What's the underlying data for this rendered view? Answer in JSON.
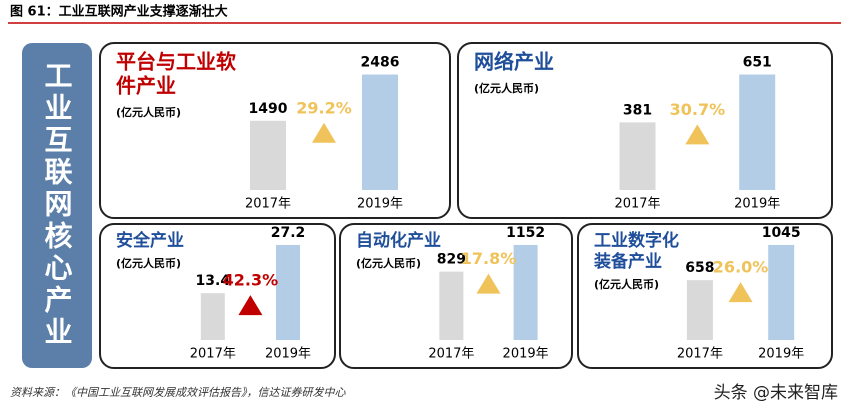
{
  "figure_title": "图 61：工业互联网产业支撑逐渐壮大",
  "side_label": "工业互联网核心产业",
  "source": "资料来源：《中国工业互联网发展成效评估报告》，信达证券研发中心",
  "watermark": "头条 @未来智库",
  "chart_data": [
    {
      "type": "bar",
      "title": [
        "平台与工业软",
        "件产业"
      ],
      "title_color": "#c00000",
      "unit": "(亿元人民币)",
      "categories": [
        "2017年",
        "2019年"
      ],
      "values": [
        1490,
        2486
      ],
      "colors": [
        "#d9d9d9",
        "#b4cde6"
      ],
      "growth": "29.2%",
      "growth_color": "#f0c35a"
    },
    {
      "type": "bar",
      "title": [
        "网络产业"
      ],
      "title_color": "#1f4e9a",
      "unit": "(亿元人民币)",
      "categories": [
        "2017年",
        "2019年"
      ],
      "values": [
        381,
        651
      ],
      "colors": [
        "#d9d9d9",
        "#b4cde6"
      ],
      "growth": "30.7%",
      "growth_color": "#f0c35a"
    },
    {
      "type": "bar",
      "title": [
        "安全产业"
      ],
      "title_color": "#1f4e9a",
      "unit": "(亿元人民币)",
      "categories": [
        "2017年",
        "2019年"
      ],
      "values": [
        13.4,
        27.2
      ],
      "colors": [
        "#d9d9d9",
        "#b4cde6"
      ],
      "growth": "42.3%",
      "growth_color": "#c00000"
    },
    {
      "type": "bar",
      "title": [
        "自动化产业"
      ],
      "title_color": "#1f4e9a",
      "unit": "(亿元人民币)",
      "categories": [
        "2017年",
        "2019年"
      ],
      "values": [
        829,
        1152
      ],
      "colors": [
        "#d9d9d9",
        "#b4cde6"
      ],
      "growth": "17.8%",
      "growth_color": "#f0c35a"
    },
    {
      "type": "bar",
      "title": [
        "工业数字化",
        "装备产业"
      ],
      "title_color": "#1f4e9a",
      "unit": "(亿元人民币)",
      "categories": [
        "2017年",
        "2019年"
      ],
      "values": [
        658,
        1045
      ],
      "colors": [
        "#d9d9d9",
        "#b4cde6"
      ],
      "growth": "26.0%",
      "growth_color": "#f0c35a"
    }
  ]
}
